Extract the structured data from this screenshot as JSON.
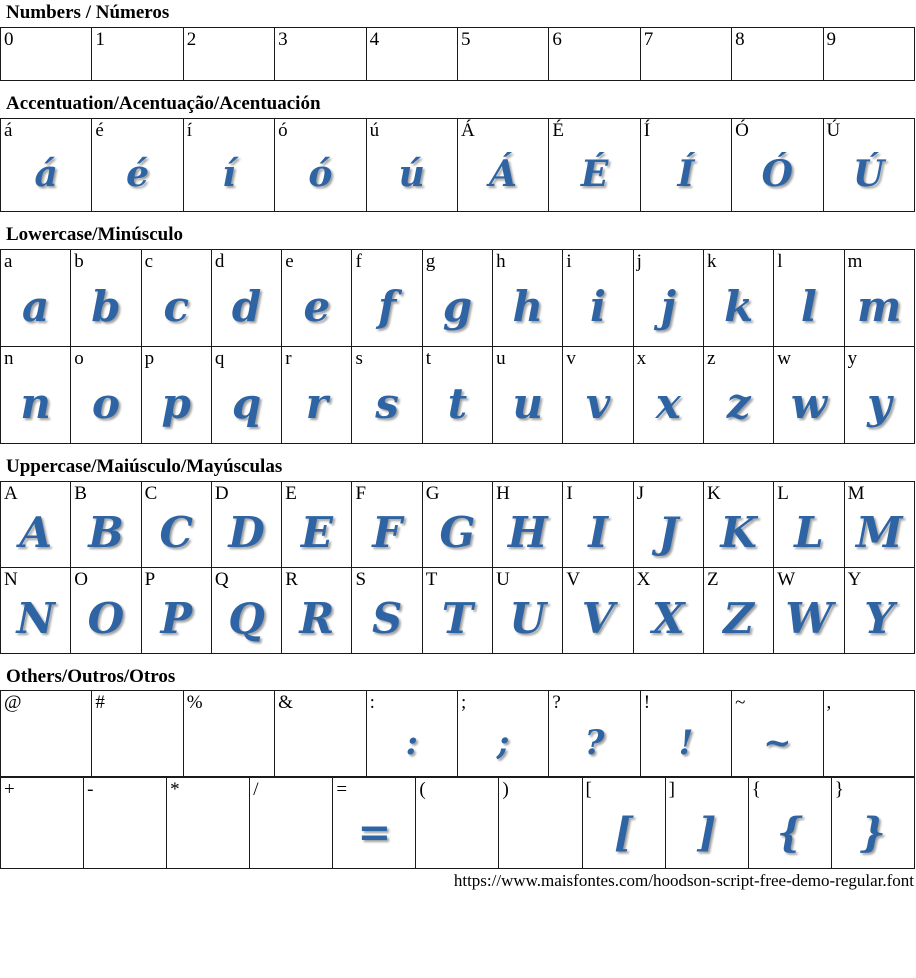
{
  "accent_color": "#2e64a4",
  "page": {
    "footer_url": "https://www.maisfontes.com/hoodson-script-free-demo-regular.font"
  },
  "sections": [
    {
      "id": "numbers",
      "title": "Numbers / Números",
      "tables": [
        {
          "rows": [
            [
              {
                "label": "0",
                "glyph": ""
              },
              {
                "label": "1",
                "glyph": ""
              },
              {
                "label": "2",
                "glyph": ""
              },
              {
                "label": "3",
                "glyph": ""
              },
              {
                "label": "4",
                "glyph": ""
              },
              {
                "label": "5",
                "glyph": ""
              },
              {
                "label": "6",
                "glyph": ""
              },
              {
                "label": "7",
                "glyph": ""
              },
              {
                "label": "8",
                "glyph": ""
              },
              {
                "label": "9",
                "glyph": ""
              }
            ]
          ]
        }
      ]
    },
    {
      "id": "accentuation",
      "title": "Accentuation/Acentuação/Acentuación",
      "tables": [
        {
          "rows": [
            [
              {
                "label": "á",
                "glyph": "á"
              },
              {
                "label": "é",
                "glyph": "é"
              },
              {
                "label": "í",
                "glyph": "í"
              },
              {
                "label": "ó",
                "glyph": "ó"
              },
              {
                "label": "ú",
                "glyph": "ú"
              },
              {
                "label": "Á",
                "glyph": "Á"
              },
              {
                "label": "É",
                "glyph": "É"
              },
              {
                "label": "Í",
                "glyph": "Í"
              },
              {
                "label": "Ó",
                "glyph": "Ó"
              },
              {
                "label": "Ú",
                "glyph": "Ú"
              }
            ]
          ]
        }
      ]
    },
    {
      "id": "lowercase",
      "title": "Lowercase/Minúsculo",
      "tables": [
        {
          "rows": [
            [
              {
                "label": "a",
                "glyph": "a"
              },
              {
                "label": "b",
                "glyph": "b"
              },
              {
                "label": "c",
                "glyph": "c"
              },
              {
                "label": "d",
                "glyph": "d"
              },
              {
                "label": "e",
                "glyph": "e"
              },
              {
                "label": "f",
                "glyph": "f"
              },
              {
                "label": "g",
                "glyph": "g"
              },
              {
                "label": "h",
                "glyph": "h"
              },
              {
                "label": "i",
                "glyph": "i"
              },
              {
                "label": "j",
                "glyph": "j"
              },
              {
                "label": "k",
                "glyph": "k"
              },
              {
                "label": "l",
                "glyph": "l"
              },
              {
                "label": "m",
                "glyph": "m"
              }
            ],
            [
              {
                "label": "n",
                "glyph": "n"
              },
              {
                "label": "o",
                "glyph": "o"
              },
              {
                "label": "p",
                "glyph": "p"
              },
              {
                "label": "q",
                "glyph": "q"
              },
              {
                "label": "r",
                "glyph": "r"
              },
              {
                "label": "s",
                "glyph": "s"
              },
              {
                "label": "t",
                "glyph": "t"
              },
              {
                "label": "u",
                "glyph": "u"
              },
              {
                "label": "v",
                "glyph": "v"
              },
              {
                "label": "x",
                "glyph": "x"
              },
              {
                "label": "z",
                "glyph": "z"
              },
              {
                "label": "w",
                "glyph": "w"
              },
              {
                "label": "y",
                "glyph": "y"
              }
            ]
          ]
        }
      ]
    },
    {
      "id": "uppercase",
      "title": "Uppercase/Maiúsculo/Mayúsculas",
      "tables": [
        {
          "rows": [
            [
              {
                "label": "A",
                "glyph": "A"
              },
              {
                "label": "B",
                "glyph": "B"
              },
              {
                "label": "C",
                "glyph": "C"
              },
              {
                "label": "D",
                "glyph": "D"
              },
              {
                "label": "E",
                "glyph": "E"
              },
              {
                "label": "F",
                "glyph": "F"
              },
              {
                "label": "G",
                "glyph": "G"
              },
              {
                "label": "H",
                "glyph": "H"
              },
              {
                "label": "I",
                "glyph": "I"
              },
              {
                "label": "J",
                "glyph": "J"
              },
              {
                "label": "K",
                "glyph": "K"
              },
              {
                "label": "L",
                "glyph": "L"
              },
              {
                "label": "M",
                "glyph": "M"
              }
            ],
            [
              {
                "label": "N",
                "glyph": "N"
              },
              {
                "label": "O",
                "glyph": "O"
              },
              {
                "label": "P",
                "glyph": "P"
              },
              {
                "label": "Q",
                "glyph": "Q"
              },
              {
                "label": "R",
                "glyph": "R"
              },
              {
                "label": "S",
                "glyph": "S"
              },
              {
                "label": "T",
                "glyph": "T"
              },
              {
                "label": "U",
                "glyph": "U"
              },
              {
                "label": "V",
                "glyph": "V"
              },
              {
                "label": "X",
                "glyph": "X"
              },
              {
                "label": "Z",
                "glyph": "Z"
              },
              {
                "label": "W",
                "glyph": "W"
              },
              {
                "label": "Y",
                "glyph": "Y"
              }
            ]
          ]
        }
      ]
    },
    {
      "id": "others",
      "title": "Others/Outros/Otros",
      "tables": [
        {
          "rows": [
            [
              {
                "label": "@",
                "glyph": ""
              },
              {
                "label": "#",
                "glyph": ""
              },
              {
                "label": "%",
                "glyph": ""
              },
              {
                "label": "&",
                "glyph": ""
              },
              {
                "label": ":",
                "glyph": ":"
              },
              {
                "label": ";",
                "glyph": ";"
              },
              {
                "label": "?",
                "glyph": "?"
              },
              {
                "label": "!",
                "glyph": "!"
              },
              {
                "label": "~",
                "glyph": "~"
              },
              {
                "label": ",",
                "glyph": ""
              }
            ]
          ]
        },
        {
          "rows": [
            [
              {
                "label": "+",
                "glyph": ""
              },
              {
                "label": "-",
                "glyph": ""
              },
              {
                "label": "*",
                "glyph": ""
              },
              {
                "label": "/",
                "glyph": ""
              },
              {
                "label": "=",
                "glyph": "="
              },
              {
                "label": "(",
                "glyph": ""
              },
              {
                "label": ")",
                "glyph": ""
              },
              {
                "label": "[",
                "glyph": "["
              },
              {
                "label": "]",
                "glyph": "]"
              },
              {
                "label": "{",
                "glyph": "{"
              },
              {
                "label": "}",
                "glyph": "}"
              }
            ]
          ]
        }
      ]
    }
  ]
}
